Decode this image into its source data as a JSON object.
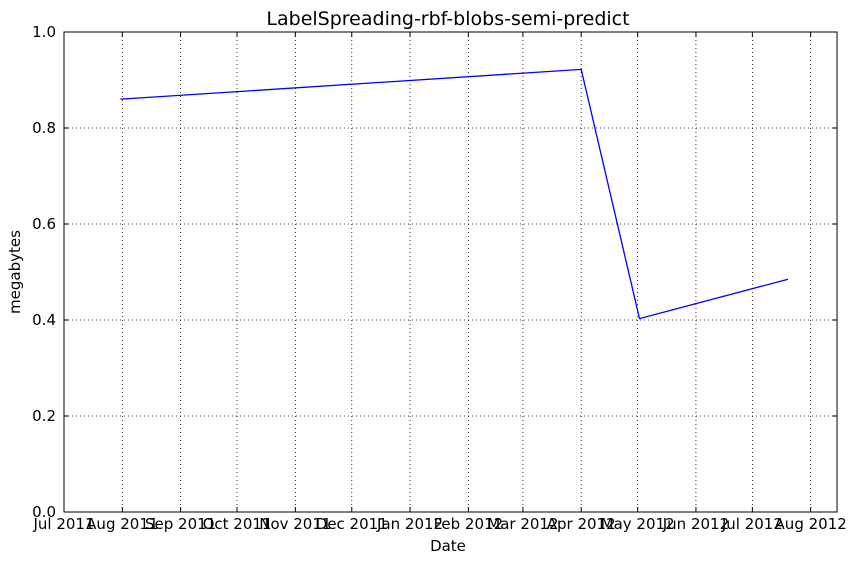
{
  "chart_data": {
    "type": "line",
    "title": "LabelSpreading-rbf-blobs-semi-predict",
    "xlabel": "Date",
    "ylabel": "megabytes",
    "xlim": [
      "2011-07-01",
      "2012-08-15"
    ],
    "ylim": [
      0,
      1.0
    ],
    "grid": true,
    "x_ticks": [
      "2011-07-01",
      "2011-08-01",
      "2011-09-01",
      "2011-10-01",
      "2011-11-01",
      "2011-12-01",
      "2012-01-01",
      "2012-02-01",
      "2012-03-01",
      "2012-04-01",
      "2012-05-01",
      "2012-06-01",
      "2012-07-01",
      "2012-08-01"
    ],
    "x_tick_labels": [
      "Jul 2011",
      "Aug 2011",
      "Sep 2011",
      "Oct 2011",
      "Nov 2011",
      "Dec 2011",
      "Jan 2012",
      "Feb 2012",
      "Mar 2012",
      "Apr 2012",
      "May 2012",
      "Jun 2012",
      "Jul 2012",
      "Aug 2012"
    ],
    "y_ticks": [
      0.0,
      0.2,
      0.4,
      0.6,
      0.8,
      1.0
    ],
    "y_tick_labels": [
      "0.0",
      "0.2",
      "0.4",
      "0.6",
      "0.8",
      "1.0"
    ],
    "series": [
      {
        "color": "#0000ff",
        "x": [
          "2011-07-31",
          "2012-04-01",
          "2012-05-02",
          "2012-07-20"
        ],
        "y": [
          0.86,
          0.922,
          0.403,
          0.485
        ]
      }
    ]
  }
}
